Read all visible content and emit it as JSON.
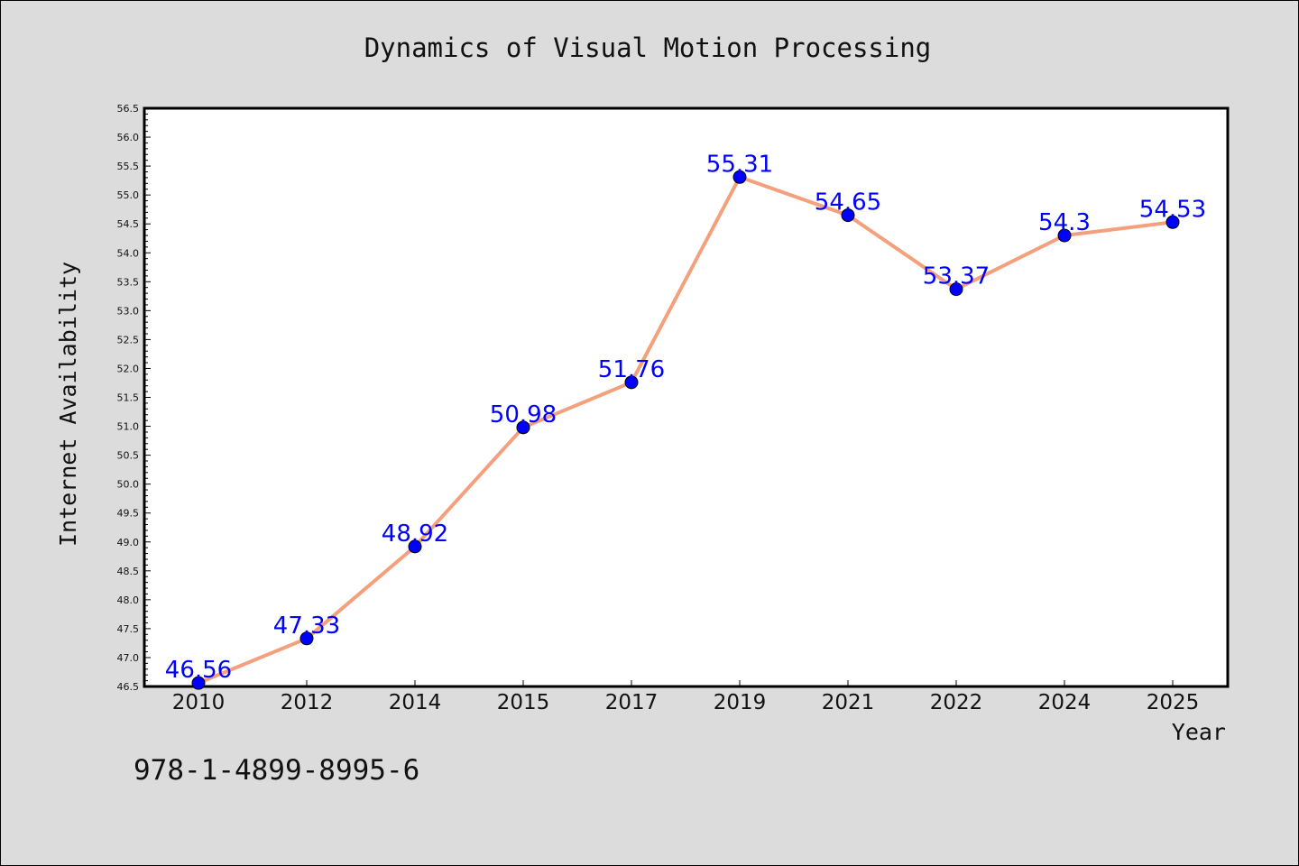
{
  "chart_data": {
    "type": "line",
    "title": "Dynamics of Visual Motion Processing",
    "xlabel": "Year",
    "ylabel": "Internet Availability",
    "categories": [
      "2010",
      "2012",
      "2014",
      "2015",
      "2017",
      "2019",
      "2021",
      "2022",
      "2024",
      "2025"
    ],
    "series": [
      {
        "values": [
          46.56,
          47.33,
          48.92,
          50.98,
          51.76,
          55.31,
          54.65,
          53.37,
          54.3,
          54.53
        ],
        "data_labels": [
          "46.56",
          "47.33",
          "48.92",
          "50.98",
          "51.76",
          "55.31",
          "54.65",
          "53.37",
          "54.3",
          "54.53"
        ],
        "line_color": "#f4a07c",
        "marker_color": "#0000ff"
      }
    ],
    "ylim": [
      46.5,
      56.5
    ],
    "yticks": [
      "46.5",
      "47.0",
      "47.5",
      "48.0",
      "48.5",
      "49.0",
      "49.5",
      "50.0",
      "50.5",
      "51.0",
      "51.5",
      "52.0",
      "52.5",
      "53.0",
      "53.5",
      "54.0",
      "54.5",
      "55.0",
      "55.5",
      "56.0",
      "56.5"
    ],
    "grid": false,
    "legend": "none"
  },
  "annotation": "978-1-4899-8995-6",
  "colors": {
    "background": "#dcdcdc",
    "plot_area": "#ffffff",
    "line": "#f4a07c",
    "marker": "#0000ff",
    "data_label": "#0000ff"
  }
}
